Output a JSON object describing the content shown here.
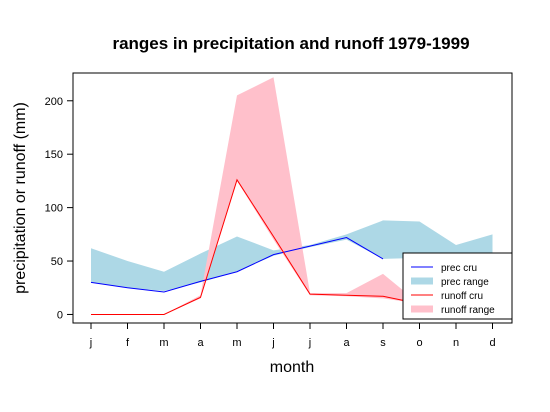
{
  "chart_data": {
    "type": "area",
    "title": "ranges in precipitation and runoff 1979-1999",
    "xlabel": "month",
    "ylabel": "precipitation or runoff (mm)",
    "categories": [
      "j",
      "f",
      "m",
      "a",
      "m",
      "j",
      "j",
      "a",
      "s",
      "o",
      "n",
      "d"
    ],
    "yticks": [
      0,
      50,
      100,
      150,
      200
    ],
    "ylim": [
      -8,
      226
    ],
    "legend_position": "bottom-right",
    "series": [
      {
        "name": "prec range",
        "kind": "band",
        "color": "#add8e6",
        "upper": [
          62,
          50,
          40,
          57,
          73,
          60,
          65,
          75,
          88,
          87,
          65,
          75
        ],
        "lower": [
          30,
          25,
          22,
          30,
          40,
          55,
          63,
          70,
          52,
          53,
          52,
          52
        ]
      },
      {
        "name": "runoff range",
        "kind": "band",
        "color": "#ffc0cb",
        "upper": [
          0,
          0,
          0,
          18,
          205,
          222,
          20,
          20,
          38,
          10,
          10,
          10
        ],
        "lower": [
          0,
          0,
          0,
          15,
          125,
          70,
          18,
          17,
          15,
          10,
          10,
          10
        ]
      },
      {
        "name": "prec cru",
        "kind": "line",
        "color": "#0000ff",
        "values": [
          30,
          25,
          21,
          31,
          40,
          56,
          64,
          72,
          52,
          null,
          null,
          null
        ]
      },
      {
        "name": "runoff cru",
        "kind": "line",
        "color": "#ff0000",
        "values": [
          0,
          0,
          0,
          16,
          126,
          73,
          19,
          18,
          17,
          10,
          null,
          null
        ]
      }
    ],
    "legend": [
      "prec cru",
      "prec range",
      "runoff cru",
      "runoff range"
    ]
  }
}
